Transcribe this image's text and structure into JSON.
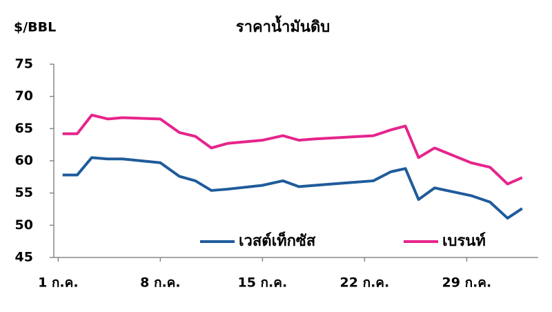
{
  "chart_data": {
    "type": "line",
    "title": "ราคาน้ำมันดิบ",
    "y_label": "$/BBL",
    "x": [
      1.3,
      2.3,
      3.3,
      4.4,
      5.4,
      8,
      9.3,
      10.4,
      11.5,
      12.6,
      15,
      16.4,
      17.5,
      18.6,
      22.6,
      23.8,
      24.8,
      25.7,
      26.8,
      29.3,
      30.6,
      31.8,
      32.8
    ],
    "series": [
      {
        "name": "เวสต์เท็กซัส",
        "color": "#1f5b9b",
        "values": [
          57.8,
          57.8,
          60.5,
          60.3,
          60.3,
          59.7,
          57.6,
          56.9,
          55.4,
          55.6,
          56.2,
          56.9,
          56.0,
          56.2,
          56.9,
          58.3,
          58.8,
          54.0,
          55.8,
          54.6,
          53.6,
          51.1,
          52.6
        ]
      },
      {
        "name": "เบรนท์",
        "color": "#e6248c",
        "values": [
          64.2,
          64.2,
          67.1,
          66.5,
          66.7,
          66.5,
          64.4,
          63.8,
          62.0,
          62.7,
          63.2,
          63.9,
          63.2,
          63.4,
          63.9,
          64.8,
          65.4,
          60.5,
          62.0,
          59.7,
          59.0,
          56.4,
          57.4
        ]
      }
    ],
    "xlim": [
      0.7,
      33.9
    ],
    "xticks": [
      {
        "value": 1,
        "label": "1 ก.ค."
      },
      {
        "value": 8,
        "label": "8 ก.ค."
      },
      {
        "value": 15,
        "label": "15 ก.ค."
      },
      {
        "value": 22,
        "label": "22 ก.ค."
      },
      {
        "value": 29,
        "label": "29 ก.ค."
      }
    ],
    "ylim": [
      45,
      75
    ],
    "yticks": [
      45,
      50,
      55,
      60,
      65,
      70,
      75
    ],
    "grid": false
  }
}
